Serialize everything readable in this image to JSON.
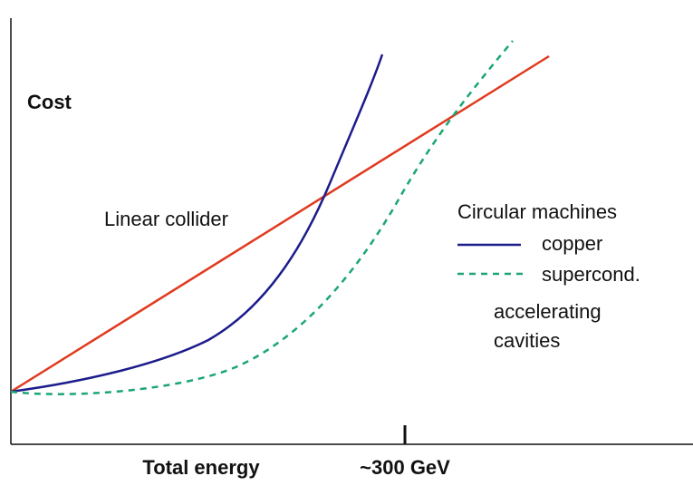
{
  "diagram": {
    "y_axis_label": "Cost",
    "x_axis_label": "Total energy",
    "tick_label": "~300 GeV",
    "linear_label": "Linear collider",
    "legend": {
      "title": "Circular machines",
      "entries": [
        "copper",
        "supercond."
      ],
      "note": [
        "accelerating",
        "cavities"
      ]
    }
  }
}
